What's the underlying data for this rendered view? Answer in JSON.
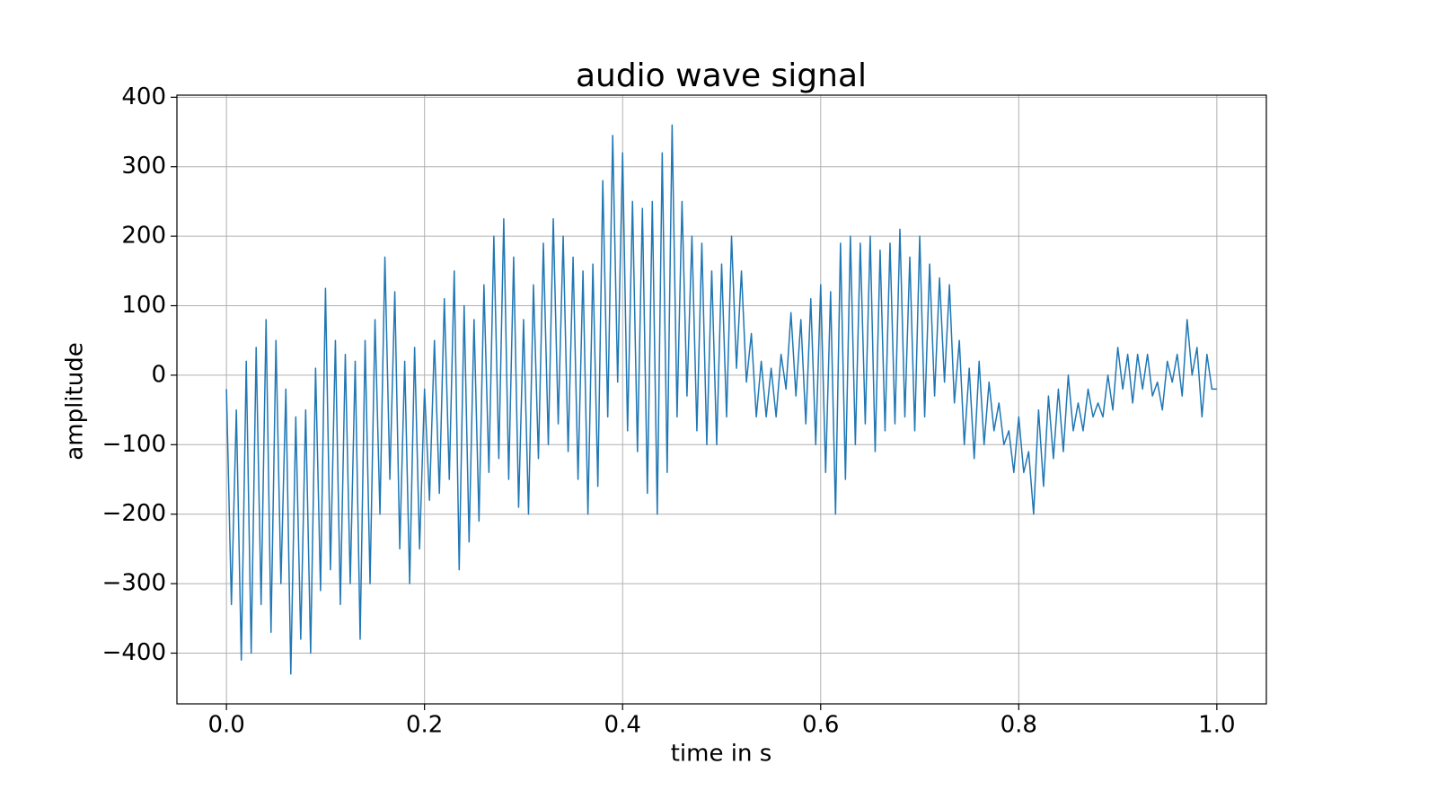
{
  "chart_data": {
    "type": "line",
    "title": "audio wave signal",
    "x_label": "time in s",
    "y_label": "amplitude",
    "color": "#1f77b4",
    "grid": true,
    "xlim": [
      -0.05,
      1.05
    ],
    "ylim": [
      -473,
      403
    ],
    "xticks": [
      {
        "value": 0,
        "label": "0.0"
      },
      0.2,
      0.4,
      0.6,
      0.8,
      {
        "value": 1,
        "label": "1.0"
      }
    ],
    "yticks": [
      {
        "value": -400,
        "label": "−400"
      },
      {
        "value": -300,
        "label": "−300"
      },
      {
        "value": -200,
        "label": "−200"
      },
      {
        "value": -100,
        "label": "−100"
      },
      0,
      100,
      200,
      300,
      400
    ],
    "x": [
      0,
      0.005,
      0.01,
      0.015,
      0.02,
      0.025,
      0.03,
      0.035,
      0.04,
      0.045,
      0.05,
      0.055,
      0.06,
      0.065,
      0.07,
      0.075,
      0.08,
      0.085,
      0.09,
      0.095,
      0.1,
      0.105,
      0.11,
      0.115,
      0.12,
      0.125,
      0.13,
      0.135,
      0.14,
      0.145,
      0.15,
      0.155,
      0.16,
      0.165,
      0.17,
      0.175,
      0.18,
      0.185,
      0.19,
      0.195,
      0.2,
      0.205,
      0.21,
      0.215,
      0.22,
      0.225,
      0.23,
      0.235,
      0.24,
      0.245,
      0.25,
      0.255,
      0.26,
      0.265,
      0.27,
      0.275,
      0.28,
      0.285,
      0.29,
      0.295,
      0.3,
      0.305,
      0.31,
      0.315,
      0.32,
      0.325,
      0.33,
      0.335,
      0.34,
      0.345,
      0.35,
      0.355,
      0.36,
      0.365,
      0.37,
      0.375,
      0.38,
      0.385,
      0.39,
      0.395,
      0.4,
      0.405,
      0.41,
      0.415,
      0.42,
      0.425,
      0.43,
      0.435,
      0.44,
      0.445,
      0.45,
      0.455,
      0.46,
      0.465,
      0.47,
      0.475,
      0.48,
      0.485,
      0.49,
      0.495,
      0.5,
      0.505,
      0.51,
      0.515,
      0.52,
      0.525,
      0.53,
      0.535,
      0.54,
      0.545,
      0.55,
      0.555,
      0.56,
      0.565,
      0.57,
      0.575,
      0.58,
      0.585,
      0.59,
      0.595,
      0.6,
      0.605,
      0.61,
      0.615,
      0.62,
      0.625,
      0.63,
      0.635,
      0.64,
      0.645,
      0.65,
      0.655,
      0.66,
      0.665,
      0.67,
      0.675,
      0.68,
      0.685,
      0.69,
      0.695,
      0.7,
      0.705,
      0.71,
      0.715,
      0.72,
      0.725,
      0.73,
      0.735,
      0.74,
      0.745,
      0.75,
      0.755,
      0.76,
      0.765,
      0.77,
      0.775,
      0.78,
      0.785,
      0.79,
      0.795,
      0.8,
      0.805,
      0.81,
      0.815,
      0.82,
      0.825,
      0.83,
      0.835,
      0.84,
      0.845,
      0.85,
      0.855,
      0.86,
      0.865,
      0.87,
      0.875,
      0.88,
      0.885,
      0.89,
      0.895,
      0.9,
      0.905,
      0.91,
      0.915,
      0.92,
      0.925,
      0.93,
      0.935,
      0.94,
      0.945,
      0.95,
      0.955,
      0.96,
      0.965,
      0.97,
      0.975,
      0.98,
      0.985,
      0.99,
      0.995,
      1
    ],
    "values": [
      -20,
      -330,
      -50,
      -410,
      20,
      -400,
      40,
      -330,
      80,
      -370,
      50,
      -300,
      -20,
      -430,
      -60,
      -380,
      -50,
      -400,
      10,
      -310,
      125,
      -280,
      50,
      -330,
      30,
      -300,
      20,
      -380,
      50,
      -300,
      80,
      -200,
      170,
      -150,
      120,
      -250,
      20,
      -300,
      40,
      -250,
      -20,
      -180,
      50,
      -170,
      110,
      -150,
      150,
      -280,
      100,
      -240,
      80,
      -210,
      130,
      -140,
      200,
      -120,
      225,
      -150,
      170,
      -190,
      80,
      -200,
      130,
      -120,
      190,
      -100,
      225,
      -70,
      200,
      -110,
      170,
      -150,
      150,
      -200,
      160,
      -160,
      280,
      -60,
      345,
      -10,
      320,
      -80,
      250,
      -110,
      240,
      -170,
      250,
      -200,
      320,
      -140,
      360,
      -60,
      250,
      -30,
      200,
      -80,
      190,
      -100,
      150,
      -100,
      160,
      -60,
      200,
      10,
      150,
      -10,
      60,
      -60,
      20,
      -60,
      10,
      -60,
      30,
      -20,
      90,
      -30,
      80,
      -70,
      110,
      -100,
      130,
      -140,
      120,
      -200,
      190,
      -150,
      200,
      -100,
      190,
      -70,
      200,
      -110,
      180,
      -80,
      190,
      -70,
      210,
      -60,
      170,
      -80,
      200,
      -60,
      160,
      -30,
      140,
      -10,
      130,
      -40,
      50,
      -100,
      10,
      -120,
      20,
      -100,
      -10,
      -80,
      -40,
      -100,
      -80,
      -140,
      -60,
      -140,
      -110,
      -200,
      -50,
      -160,
      -30,
      -120,
      -20,
      -110,
      0,
      -80,
      -40,
      -80,
      -20,
      -60,
      -40,
      -60,
      0,
      -50,
      40,
      -20,
      30,
      -40,
      30,
      -20,
      30,
      -30,
      -10,
      -50,
      20,
      -10,
      30,
      -30,
      80,
      0,
      40,
      -60,
      30,
      -20,
      -20
    ]
  }
}
